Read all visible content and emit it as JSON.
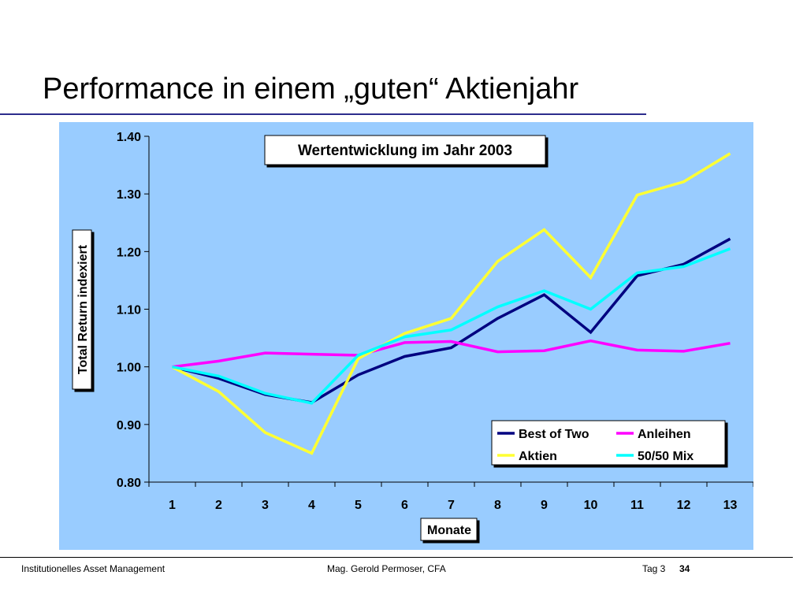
{
  "slide": {
    "title": "Performance in einem „guten“ Aktienjahr"
  },
  "footer": {
    "left": "Institutionelles Asset Management",
    "center": "Mag. Gerold Permoser, CFA",
    "day": "Tag 3",
    "page": "34"
  },
  "chart_data": {
    "type": "line",
    "title": "Wertentwicklung im Jahr 2003",
    "xlabel": "Monate",
    "ylabel": "Total Return indexiert",
    "x": [
      1,
      2,
      3,
      4,
      5,
      6,
      7,
      8,
      9,
      10,
      11,
      12,
      13
    ],
    "ylim": [
      0.8,
      1.4
    ],
    "yticks": [
      "0.80",
      "0.90",
      "1.00",
      "1.10",
      "1.20",
      "1.30",
      "1.40"
    ],
    "grid": false,
    "legend_position": "bottom-right",
    "background": "#99ccff",
    "series": [
      {
        "name": "Best of Two",
        "color": "#000080",
        "values": [
          1.0,
          0.98,
          0.952,
          0.938,
          0.986,
          1.018,
          1.033,
          1.084,
          1.125,
          1.06,
          1.158,
          1.178,
          1.222
        ]
      },
      {
        "name": "Anleihen",
        "color": "#ff00ff",
        "values": [
          1.0,
          1.01,
          1.024,
          1.022,
          1.02,
          1.042,
          1.044,
          1.026,
          1.028,
          1.045,
          1.029,
          1.027,
          1.041
        ]
      },
      {
        "name": "Aktien",
        "color": "#ffff33",
        "values": [
          1.0,
          0.957,
          0.886,
          0.85,
          1.014,
          1.058,
          1.084,
          1.183,
          1.238,
          1.155,
          1.298,
          1.321,
          1.37
        ]
      },
      {
        "name": "50/50 Mix",
        "color": "#00ffff",
        "values": [
          1.0,
          0.984,
          0.954,
          0.937,
          1.02,
          1.052,
          1.064,
          1.104,
          1.132,
          1.1,
          1.163,
          1.174,
          1.205
        ]
      }
    ]
  }
}
